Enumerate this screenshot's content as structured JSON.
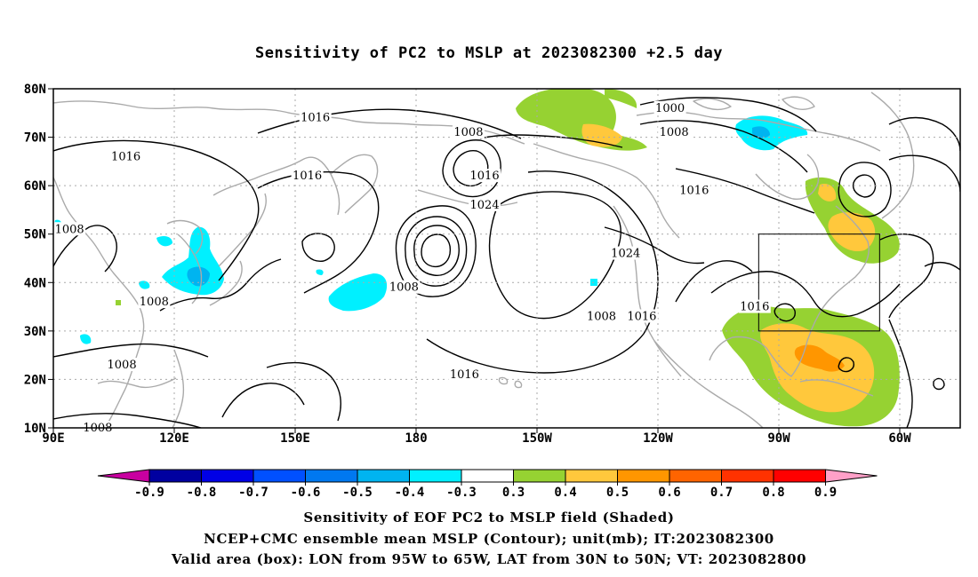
{
  "title": "Sensitivity of PC2 to MSLP at 2023082300 +2.5 day",
  "map": {
    "lat_labels": [
      "80N",
      "70N",
      "60N",
      "50N",
      "40N",
      "30N",
      "20N",
      "10N"
    ],
    "lon_labels": [
      "90E",
      "120E",
      "150E",
      "180",
      "150W",
      "120W",
      "90W",
      "60W"
    ],
    "lon_range": [
      90,
      315
    ],
    "lat_range": [
      10,
      80
    ],
    "grid": "dotted",
    "valid_box": {
      "lon_min": -95,
      "lon_max": -65,
      "lat_min": 30,
      "lat_max": 50
    }
  },
  "contour_labels": [
    {
      "text": "1016",
      "lon": 155,
      "lat": 74
    },
    {
      "text": "1008",
      "lon": 193,
      "lat": 71
    },
    {
      "text": "1000",
      "lon": 243,
      "lat": 76
    },
    {
      "text": "1008",
      "lon": 244,
      "lat": 71
    },
    {
      "text": "1016",
      "lon": 108,
      "lat": 66
    },
    {
      "text": "1016",
      "lon": 153,
      "lat": 62
    },
    {
      "text": "1016",
      "lon": 197,
      "lat": 62
    },
    {
      "text": "1016",
      "lon": 249,
      "lat": 59
    },
    {
      "text": "1024",
      "lon": 197,
      "lat": 56
    },
    {
      "text": "1008",
      "lon": 94,
      "lat": 51
    },
    {
      "text": "1024",
      "lon": 232,
      "lat": 46
    },
    {
      "text": "1008",
      "lon": 177,
      "lat": 39
    },
    {
      "text": "1008",
      "lon": 115,
      "lat": 36
    },
    {
      "text": "1016",
      "lon": 264,
      "lat": 35
    },
    {
      "text": "1008",
      "lon": 226,
      "lat": 33
    },
    {
      "text": "1016",
      "lon": 236,
      "lat": 33
    },
    {
      "text": "1008",
      "lon": 107,
      "lat": 23
    },
    {
      "text": "1016",
      "lon": 192,
      "lat": 21
    },
    {
      "text": "1008",
      "lon": 101,
      "lat": 10
    }
  ],
  "colorbar": {
    "levels": [
      "-0.9",
      "-0.8",
      "-0.7",
      "-0.6",
      "-0.5",
      "-0.4",
      "-0.3",
      "0.3",
      "0.4",
      "0.5",
      "0.6",
      "0.7",
      "0.8",
      "0.9"
    ],
    "colors": [
      "#0000a0",
      "#0000e6",
      "#0050ff",
      "#0078f0",
      "#00b4f0",
      "#00f0ff",
      "#ffffff",
      "#96d232",
      "#ffc83c",
      "#ff9600",
      "#ff6400",
      "#ff3200",
      "#ff0000"
    ],
    "low_color": "#c800a0",
    "high_color": "#ffa0c8"
  },
  "footer": {
    "line1": "Sensitivity of EOF PC2 to MSLP field (Shaded)",
    "line2": "NCEP+CMC ensemble mean MSLP (Contour); unit(mb); IT:2023082300",
    "line3": "Valid area (box): LON from 95W to 65W, LAT from 30N to 50N; VT: 2023082800"
  }
}
